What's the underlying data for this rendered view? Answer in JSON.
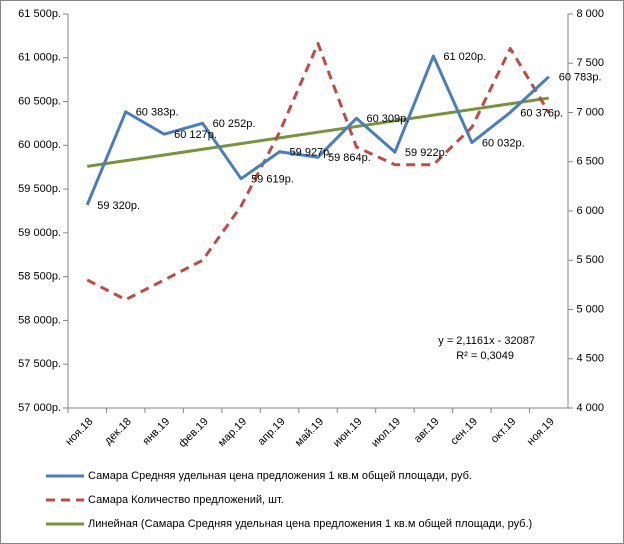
{
  "chart_data": {
    "type": "line",
    "categories": [
      "ноя.18",
      "дек.18",
      "янв.19",
      "фев.19",
      "мар.19",
      "апр.19",
      "май.19",
      "июн.19",
      "июл.19",
      "авг.19",
      "сен.19",
      "окт.19",
      "ноя.19"
    ],
    "series": [
      {
        "name": "Самара Средняя удельная цена предложения  1 кв.м общей площади, руб.",
        "color": "#4a7ebb",
        "dash": false,
        "values": [
          59320,
          60383,
          60127,
          60252,
          59619,
          59927,
          59864,
          60309,
          59922,
          61020,
          60032,
          60376,
          60783
        ],
        "value_labels": [
          "59 320р.",
          "60 383р.",
          "60 127р.",
          "60 252р.",
          "59 619р.",
          "59 927р.",
          "59 864р.",
          "60 309р.",
          "59 922р.",
          "61 020р.",
          "60 032р.",
          "60 376р.",
          "60 783р."
        ]
      },
      {
        "name": "Самара Количество предложений, шт.",
        "color": "#be4b48",
        "dash": true,
        "axis": "y2",
        "values": [
          5300,
          5100,
          5300,
          5500,
          6050,
          6800,
          7700,
          6650,
          6470,
          6470,
          6850,
          7650,
          7000
        ]
      },
      {
        "name": "Линейная (Самара Средняя удельная цена предложения  1 кв.м общей площади, руб.)",
        "color": "#77933c",
        "dash": false,
        "values": [
          59760,
          59825,
          59890,
          59955,
          60020,
          60085,
          60150,
          60215,
          60280,
          60345,
          60410,
          60475,
          60540
        ]
      }
    ],
    "annotations": [
      "y = 2,1161x - 32087",
      "R² = 0,3049"
    ],
    "ylim": [
      57000,
      61500
    ],
    "yticks": [
      {
        "value": 57000,
        "label": "57 000р."
      },
      {
        "value": 57500,
        "label": "57 500р."
      },
      {
        "value": 58000,
        "label": "58 000р."
      },
      {
        "value": 58500,
        "label": "58 500р."
      },
      {
        "value": 59000,
        "label": "59 000р."
      },
      {
        "value": 59500,
        "label": "59 500р."
      },
      {
        "value": 60000,
        "label": "60 000р."
      },
      {
        "value": 60500,
        "label": "60 500р."
      },
      {
        "value": 61000,
        "label": "61 000р."
      },
      {
        "value": 61500,
        "label": "61 500р."
      }
    ],
    "y2lim": [
      4000,
      8000
    ],
    "y2ticks": [
      {
        "value": 4000,
        "label": "4 000"
      },
      {
        "value": 4500,
        "label": "4 500"
      },
      {
        "value": 5000,
        "label": "5 000"
      },
      {
        "value": 5500,
        "label": "5 500"
      },
      {
        "value": 6000,
        "label": "6 000"
      },
      {
        "value": 6500,
        "label": "6 500"
      },
      {
        "value": 7000,
        "label": "7 000"
      },
      {
        "value": 7500,
        "label": "7 500"
      },
      {
        "value": 8000,
        "label": "8 000"
      }
    ],
    "grid": false,
    "legend": "bottom"
  }
}
